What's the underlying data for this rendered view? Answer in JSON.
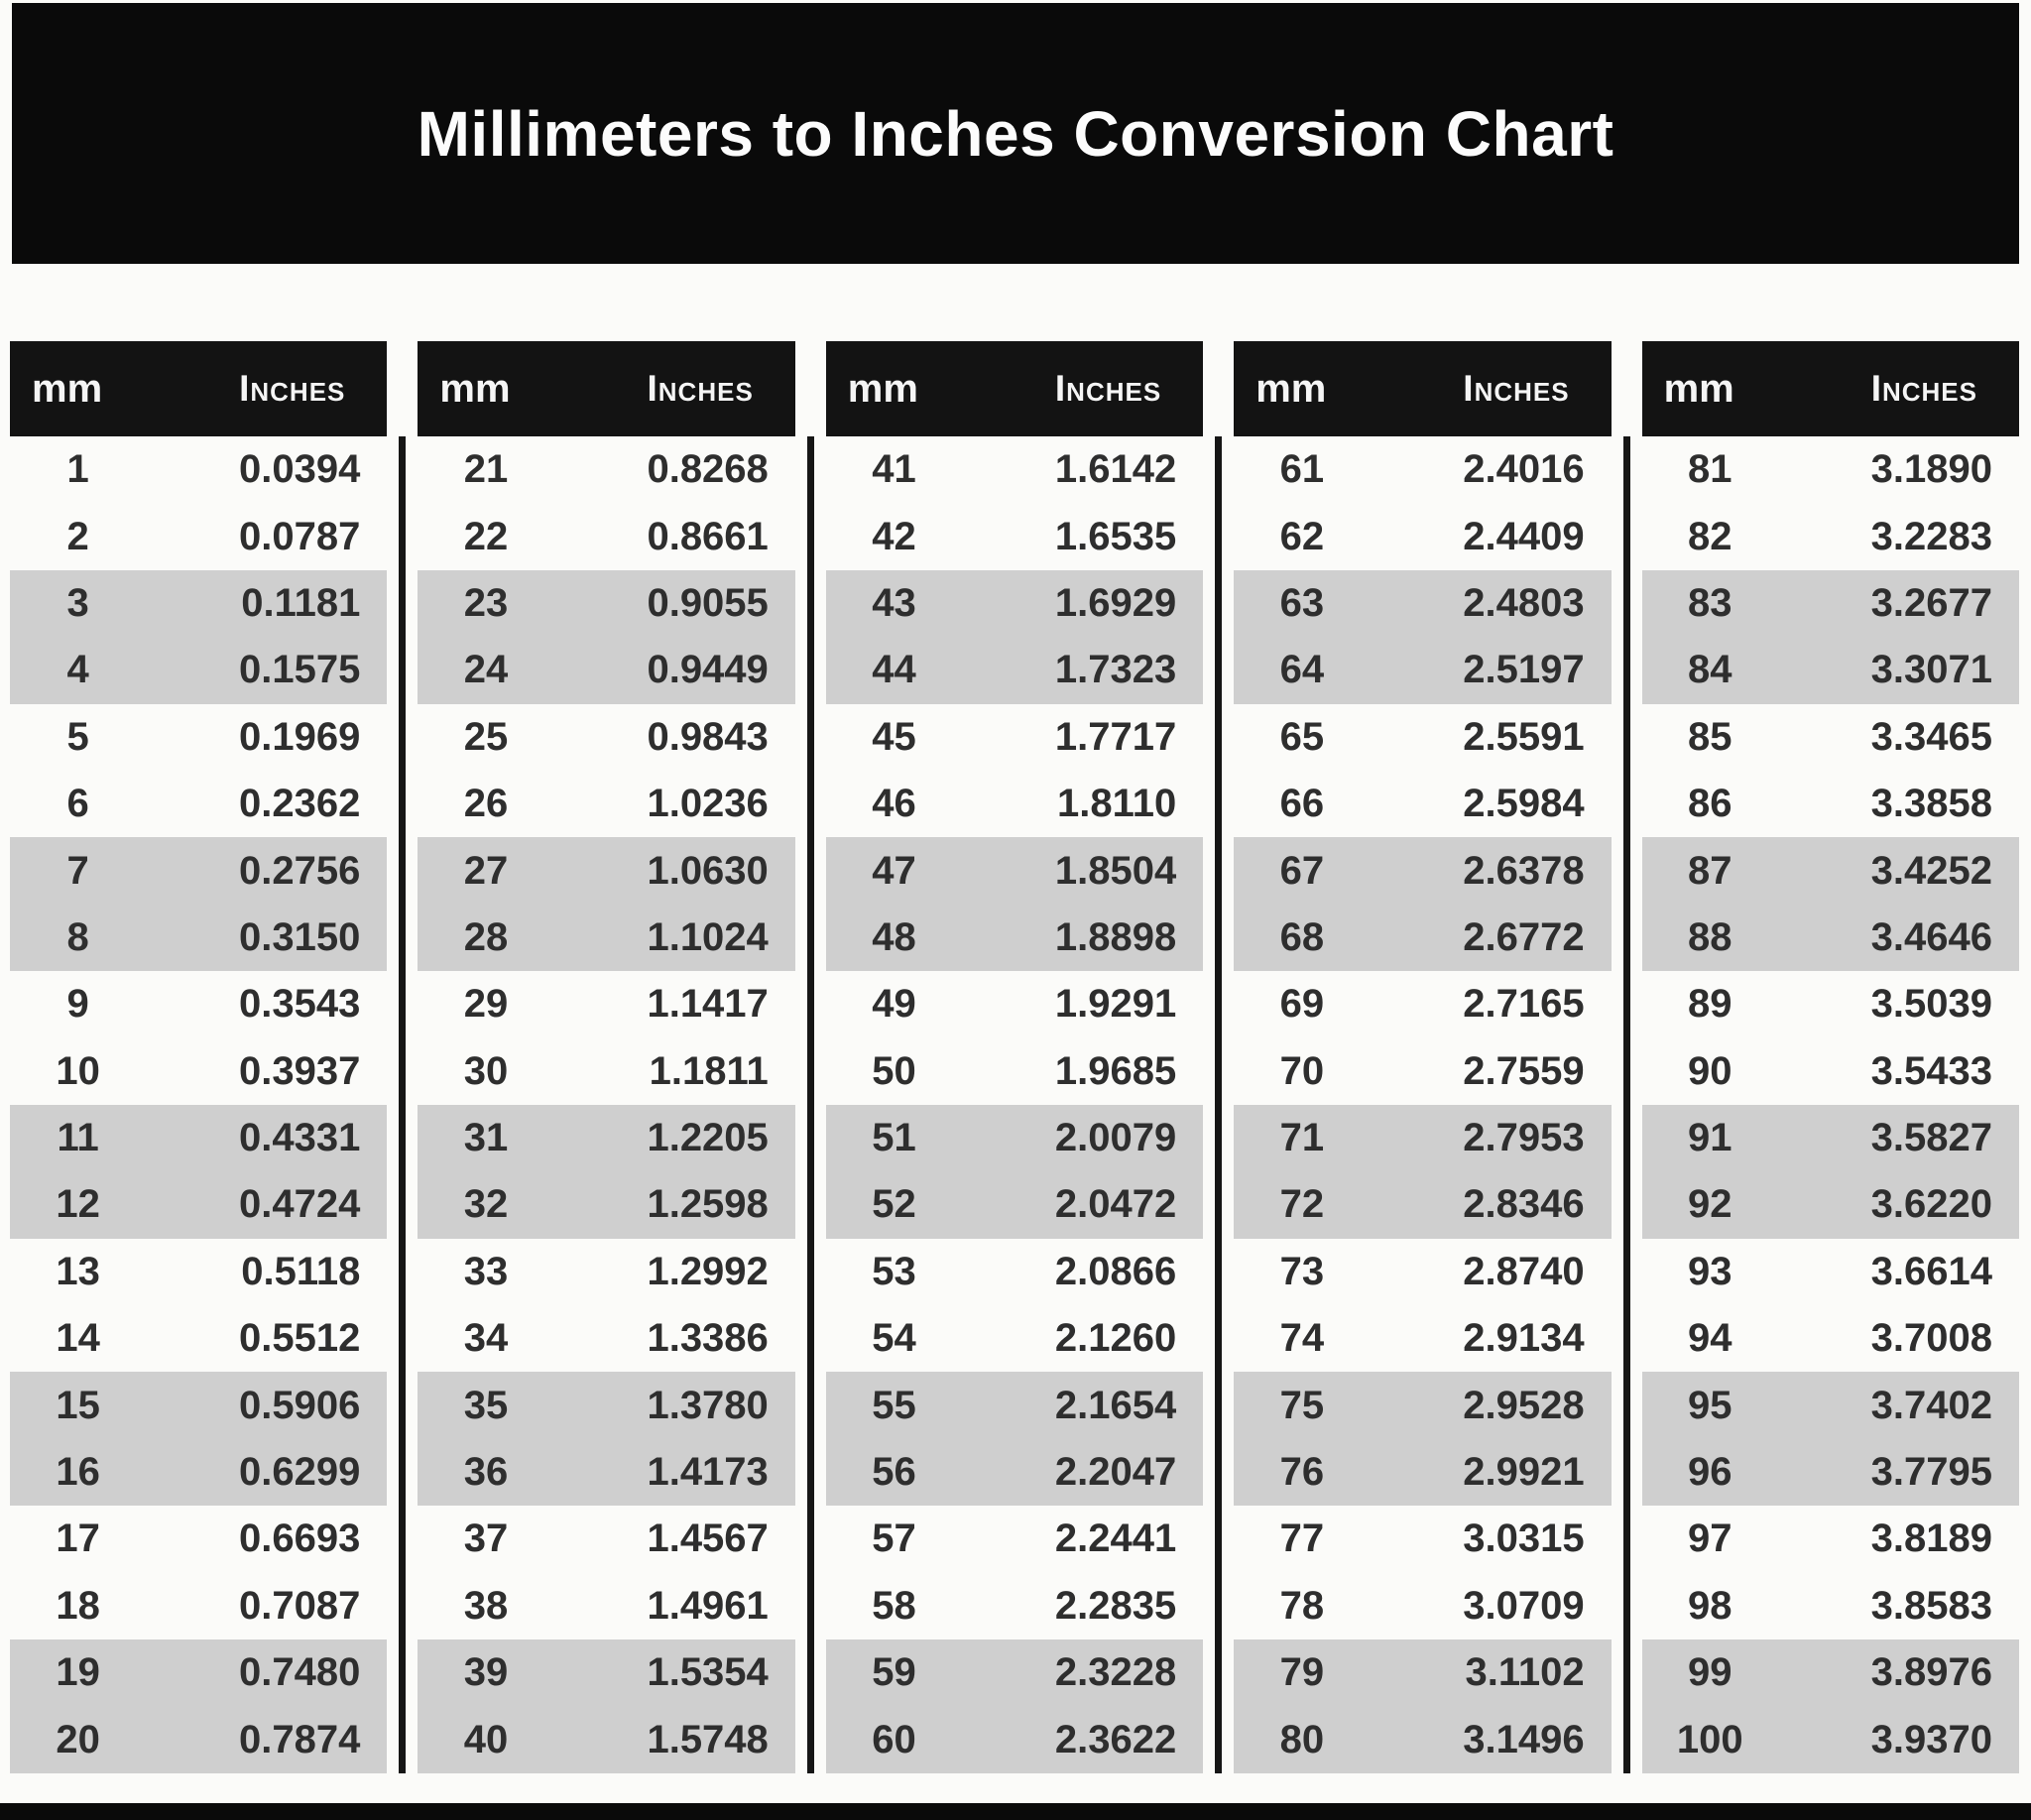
{
  "title": "Millimeters to Inches Conversion Chart",
  "columns": {
    "mm_label": "mm",
    "inches_label": "Inches"
  },
  "colors": {
    "banner_bg": "#0a0a0a",
    "header_bg": "#131313",
    "shaded_row": "#cfcfcf",
    "data_text": "#2e2e2e",
    "header_text": "#f5f5f5"
  },
  "chart_data": {
    "type": "table",
    "title": "Millimeters to Inches Conversion Chart",
    "column_headers": [
      "mm",
      "Inches"
    ],
    "shading_pattern": "rows in pairs: 1-2 white, 3-4 gray, repeating",
    "tables": [
      {
        "rows": [
          [
            1,
            "0.0394"
          ],
          [
            2,
            "0.0787"
          ],
          [
            3,
            "0.1181"
          ],
          [
            4,
            "0.1575"
          ],
          [
            5,
            "0.1969"
          ],
          [
            6,
            "0.2362"
          ],
          [
            7,
            "0.2756"
          ],
          [
            8,
            "0.3150"
          ],
          [
            9,
            "0.3543"
          ],
          [
            10,
            "0.3937"
          ],
          [
            11,
            "0.4331"
          ],
          [
            12,
            "0.4724"
          ],
          [
            13,
            "0.5118"
          ],
          [
            14,
            "0.5512"
          ],
          [
            15,
            "0.5906"
          ],
          [
            16,
            "0.6299"
          ],
          [
            17,
            "0.6693"
          ],
          [
            18,
            "0.7087"
          ],
          [
            19,
            "0.7480"
          ],
          [
            20,
            "0.7874"
          ]
        ]
      },
      {
        "rows": [
          [
            21,
            "0.8268"
          ],
          [
            22,
            "0.8661"
          ],
          [
            23,
            "0.9055"
          ],
          [
            24,
            "0.9449"
          ],
          [
            25,
            "0.9843"
          ],
          [
            26,
            "1.0236"
          ],
          [
            27,
            "1.0630"
          ],
          [
            28,
            "1.1024"
          ],
          [
            29,
            "1.1417"
          ],
          [
            30,
            "1.1811"
          ],
          [
            31,
            "1.2205"
          ],
          [
            32,
            "1.2598"
          ],
          [
            33,
            "1.2992"
          ],
          [
            34,
            "1.3386"
          ],
          [
            35,
            "1.3780"
          ],
          [
            36,
            "1.4173"
          ],
          [
            37,
            "1.4567"
          ],
          [
            38,
            "1.4961"
          ],
          [
            39,
            "1.5354"
          ],
          [
            40,
            "1.5748"
          ]
        ]
      },
      {
        "rows": [
          [
            41,
            "1.6142"
          ],
          [
            42,
            "1.6535"
          ],
          [
            43,
            "1.6929"
          ],
          [
            44,
            "1.7323"
          ],
          [
            45,
            "1.7717"
          ],
          [
            46,
            "1.8110"
          ],
          [
            47,
            "1.8504"
          ],
          [
            48,
            "1.8898"
          ],
          [
            49,
            "1.9291"
          ],
          [
            50,
            "1.9685"
          ],
          [
            51,
            "2.0079"
          ],
          [
            52,
            "2.0472"
          ],
          [
            53,
            "2.0866"
          ],
          [
            54,
            "2.1260"
          ],
          [
            55,
            "2.1654"
          ],
          [
            56,
            "2.2047"
          ],
          [
            57,
            "2.2441"
          ],
          [
            58,
            "2.2835"
          ],
          [
            59,
            "2.3228"
          ],
          [
            60,
            "2.3622"
          ]
        ]
      },
      {
        "rows": [
          [
            61,
            "2.4016"
          ],
          [
            62,
            "2.4409"
          ],
          [
            63,
            "2.4803"
          ],
          [
            64,
            "2.5197"
          ],
          [
            65,
            "2.5591"
          ],
          [
            66,
            "2.5984"
          ],
          [
            67,
            "2.6378"
          ],
          [
            68,
            "2.6772"
          ],
          [
            69,
            "2.7165"
          ],
          [
            70,
            "2.7559"
          ],
          [
            71,
            "2.7953"
          ],
          [
            72,
            "2.8346"
          ],
          [
            73,
            "2.8740"
          ],
          [
            74,
            "2.9134"
          ],
          [
            75,
            "2.9528"
          ],
          [
            76,
            "2.9921"
          ],
          [
            77,
            "3.0315"
          ],
          [
            78,
            "3.0709"
          ],
          [
            79,
            "3.1102"
          ],
          [
            80,
            "3.1496"
          ]
        ]
      },
      {
        "rows": [
          [
            81,
            "3.1890"
          ],
          [
            82,
            "3.2283"
          ],
          [
            83,
            "3.2677"
          ],
          [
            84,
            "3.3071"
          ],
          [
            85,
            "3.3465"
          ],
          [
            86,
            "3.3858"
          ],
          [
            87,
            "3.4252"
          ],
          [
            88,
            "3.4646"
          ],
          [
            89,
            "3.5039"
          ],
          [
            90,
            "3.5433"
          ],
          [
            91,
            "3.5827"
          ],
          [
            92,
            "3.6220"
          ],
          [
            93,
            "3.6614"
          ],
          [
            94,
            "3.7008"
          ],
          [
            95,
            "3.7402"
          ],
          [
            96,
            "3.7795"
          ],
          [
            97,
            "3.8189"
          ],
          [
            98,
            "3.8583"
          ],
          [
            99,
            "3.8976"
          ],
          [
            100,
            "3.9370"
          ]
        ]
      }
    ]
  }
}
